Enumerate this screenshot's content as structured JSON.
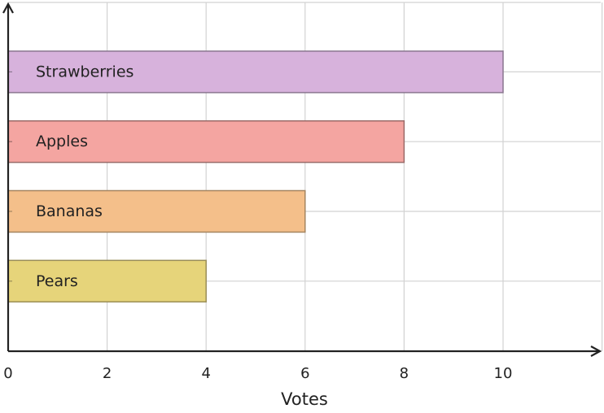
{
  "chart_data": {
    "type": "bar",
    "orientation": "horizontal",
    "title": "",
    "xlabel": "Votes",
    "ylabel": "",
    "xlim": [
      0,
      12
    ],
    "x_ticks": [
      0,
      2,
      4,
      6,
      8,
      10
    ],
    "grid": true,
    "categories": [
      "Strawberries",
      "Apples",
      "Bananas",
      "Pears"
    ],
    "values": [
      10,
      8,
      6,
      4
    ],
    "colors": [
      "#d7b2dc",
      "#f4a5a1",
      "#f4bf8a",
      "#e6d47a"
    ],
    "stroke_colors": [
      "#8a7790",
      "#9a6a68",
      "#a58560",
      "#9a8e58"
    ],
    "label_placement": "inside-left"
  }
}
